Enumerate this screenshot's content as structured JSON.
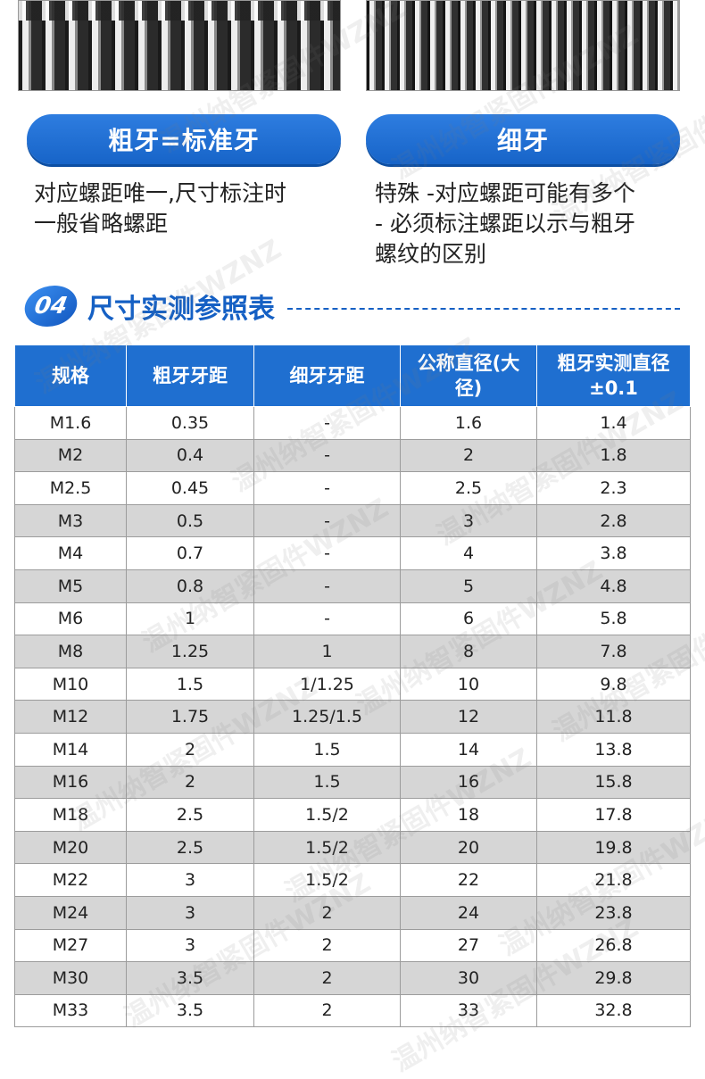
{
  "threads": {
    "coarse_image": "coarse-thread-closeup",
    "fine_image": "fine-thread-closeup"
  },
  "pills": {
    "coarse": "粗牙=标准牙",
    "fine": "细牙"
  },
  "descriptions": {
    "coarse": [
      "对应螺距唯一,尺寸标注时",
      "一般省略螺距"
    ],
    "fine": [
      "特殊 -对应螺距可能有多个",
      "- 必须标注螺距以示与粗牙",
      "螺纹的区别"
    ]
  },
  "section": {
    "number": "04",
    "title": "尺寸实测参照表"
  },
  "table": {
    "headers": [
      "规格",
      "粗牙牙距",
      "细牙牙距",
      "公称直径(大径)",
      "粗牙实测直径±0.1"
    ],
    "rows": [
      [
        "M1.6",
        "0.35",
        "-",
        "1.6",
        "1.4"
      ],
      [
        "M2",
        "0.4",
        "-",
        "2",
        "1.8"
      ],
      [
        "M2.5",
        "0.45",
        "-",
        "2.5",
        "2.3"
      ],
      [
        "M3",
        "0.5",
        "-",
        "3",
        "2.8"
      ],
      [
        "M4",
        "0.7",
        "-",
        "4",
        "3.8"
      ],
      [
        "M5",
        "0.8",
        "-",
        "5",
        "4.8"
      ],
      [
        "M6",
        "1",
        "-",
        "6",
        "5.8"
      ],
      [
        "M8",
        "1.25",
        "1",
        "8",
        "7.8"
      ],
      [
        "M10",
        "1.5",
        "1/1.25",
        "10",
        "9.8"
      ],
      [
        "M12",
        "1.75",
        "1.25/1.5",
        "12",
        "11.8"
      ],
      [
        "M14",
        "2",
        "1.5",
        "14",
        "13.8"
      ],
      [
        "M16",
        "2",
        "1.5",
        "16",
        "15.8"
      ],
      [
        "M18",
        "2.5",
        "1.5/2",
        "18",
        "17.8"
      ],
      [
        "M20",
        "2.5",
        "1.5/2",
        "20",
        "19.8"
      ],
      [
        "M22",
        "3",
        "1.5/2",
        "22",
        "21.8"
      ],
      [
        "M24",
        "3",
        "2",
        "24",
        "23.8"
      ],
      [
        "M27",
        "3",
        "2",
        "27",
        "26.8"
      ],
      [
        "M30",
        "3.5",
        "2",
        "30",
        "29.8"
      ],
      [
        "M33",
        "3.5",
        "2",
        "33",
        "32.8"
      ]
    ]
  },
  "watermark": "温州纳智紧固件WZNZ",
  "colors": {
    "accent": "#1f6fd0",
    "row_alt": "#d6d6d6"
  }
}
